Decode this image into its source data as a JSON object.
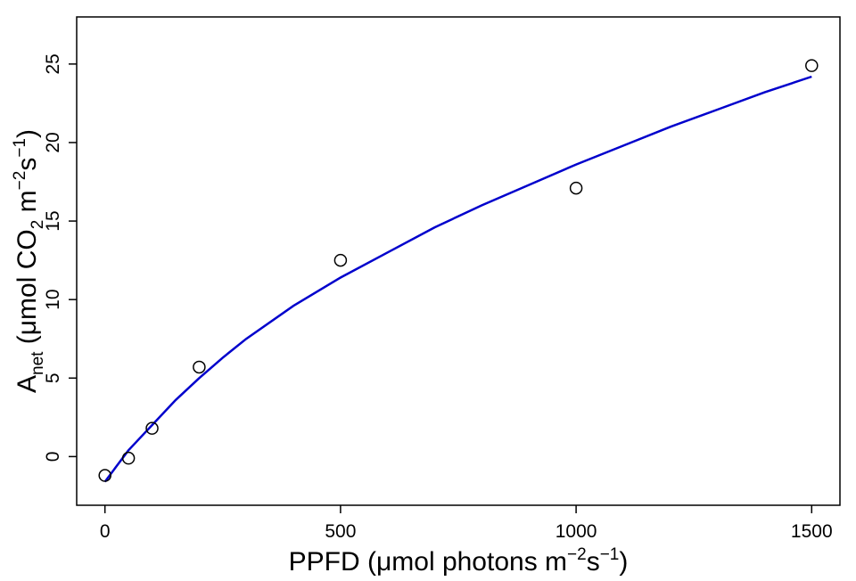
{
  "chart_data": {
    "type": "scatter",
    "title": "",
    "xlabel": {
      "prefix": "PPFD (",
      "mu": "μ",
      "text": "mol photons m",
      "sup1": "−2",
      "mid": "s",
      "sup2": "−1",
      "suffix": ")"
    },
    "ylabel": {
      "main": "A",
      "sub": "net",
      "prefix": " (",
      "mu": "μ",
      "text": "mol CO",
      "sub2": "2",
      "mid": " m",
      "sup1": "−2",
      "mid2": "s",
      "sup2": "−1",
      "suffix": ")"
    },
    "xlim": [
      -60,
      1560
    ],
    "ylim": [
      -3.1,
      28
    ],
    "xticks": [
      0,
      500,
      1000,
      1500
    ],
    "xtick_labels": [
      "0",
      "500",
      "1000",
      "1500"
    ],
    "yticks": [
      0,
      5,
      10,
      15,
      20,
      25
    ],
    "ytick_labels": [
      "0",
      "5",
      "10",
      "15",
      "20",
      "25"
    ],
    "grid": false,
    "legend": "none",
    "series": [
      {
        "kind": "points",
        "marker": "open-circle",
        "color": "#000000",
        "x": [
          0,
          50,
          100,
          200,
          500,
          1000,
          1500
        ],
        "y": [
          -1.2,
          -0.1,
          1.8,
          5.7,
          12.5,
          17.1,
          24.9
        ]
      },
      {
        "kind": "fitted-curve",
        "color": "#0000cc",
        "x": [
          0,
          25,
          50,
          75,
          100,
          150,
          200,
          250,
          300,
          400,
          500,
          600,
          700,
          800,
          900,
          1000,
          1100,
          1200,
          1300,
          1400,
          1500
        ],
        "y": [
          -1.6,
          -0.6,
          0.4,
          1.2,
          2.0,
          3.6,
          5.0,
          6.3,
          7.5,
          9.6,
          11.4,
          13.0,
          14.6,
          16.0,
          17.3,
          18.6,
          19.8,
          21.0,
          22.1,
          23.2,
          24.2
        ]
      }
    ]
  }
}
